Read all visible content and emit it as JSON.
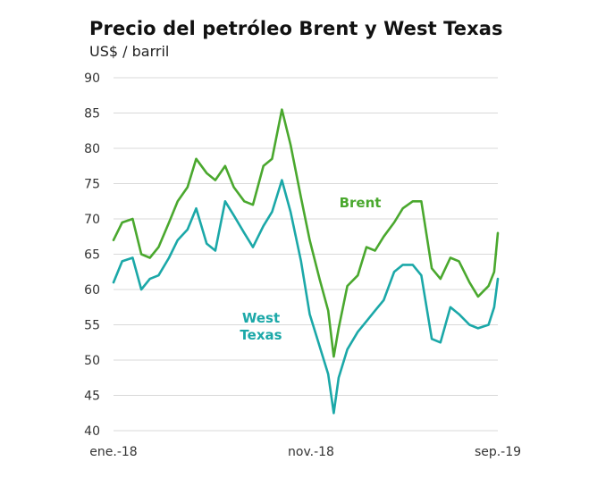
{
  "chart": {
    "title": "Precio del petróleo Brent y West Texas",
    "unit": "US$ / barril"
  },
  "chart_data": {
    "type": "line",
    "title": "Precio del petróleo Brent y West Texas",
    "ylabel": "US$ / barril",
    "xlabel": "",
    "ylim": [
      40,
      90
    ],
    "yticks": [
      40,
      45,
      50,
      55,
      60,
      65,
      70,
      75,
      80,
      85,
      90
    ],
    "xticks": [
      "ene.-18",
      "nov.-18",
      "sep.-19"
    ],
    "grid": "horizontal",
    "x": [
      "2018-01-01",
      "2018-01-15",
      "2018-02-01",
      "2018-02-15",
      "2018-03-01",
      "2018-03-15",
      "2018-04-01",
      "2018-04-15",
      "2018-05-01",
      "2018-05-15",
      "2018-06-01",
      "2018-06-15",
      "2018-07-01",
      "2018-07-15",
      "2018-08-01",
      "2018-08-15",
      "2018-09-01",
      "2018-09-15",
      "2018-10-01",
      "2018-10-15",
      "2018-11-01",
      "2018-11-15",
      "2018-12-01",
      "2018-12-15",
      "2018-12-24",
      "2019-01-01",
      "2019-01-15",
      "2019-02-01",
      "2019-02-15",
      "2019-03-01",
      "2019-03-15",
      "2019-04-01",
      "2019-04-15",
      "2019-05-01",
      "2019-05-15",
      "2019-06-01",
      "2019-06-15",
      "2019-07-01",
      "2019-07-15",
      "2019-08-01",
      "2019-08-15",
      "2019-09-01",
      "2019-09-10",
      "2019-09-16"
    ],
    "series": [
      {
        "name": "Brent",
        "color": "#4aa82e",
        "values": [
          67.0,
          69.5,
          70.0,
          65.0,
          64.5,
          66.0,
          69.5,
          72.5,
          74.5,
          78.5,
          76.5,
          75.5,
          77.5,
          74.5,
          72.5,
          72.0,
          77.5,
          78.5,
          85.5,
          80.5,
          73.0,
          67.0,
          61.5,
          57.0,
          50.5,
          54.5,
          60.5,
          62.0,
          66.0,
          65.5,
          67.5,
          69.5,
          71.5,
          72.5,
          72.5,
          63.0,
          61.5,
          64.5,
          64.0,
          61.0,
          59.0,
          60.5,
          62.5,
          68.0
        ]
      },
      {
        "name": "West Texas",
        "color": "#1ba8a8",
        "values": [
          61.0,
          64.0,
          64.5,
          60.0,
          61.5,
          62.0,
          64.5,
          67.0,
          68.5,
          71.5,
          66.5,
          65.5,
          72.5,
          70.5,
          68.0,
          66.0,
          69.0,
          71.0,
          75.5,
          71.0,
          64.0,
          56.5,
          52.0,
          48.0,
          42.5,
          47.5,
          51.5,
          54.0,
          55.5,
          57.0,
          58.5,
          62.5,
          63.5,
          63.5,
          62.0,
          53.0,
          52.5,
          57.5,
          56.5,
          55.0,
          54.5,
          55.0,
          57.5,
          61.5
        ]
      }
    ],
    "annotations": [
      "Brent",
      "West Texas"
    ]
  }
}
